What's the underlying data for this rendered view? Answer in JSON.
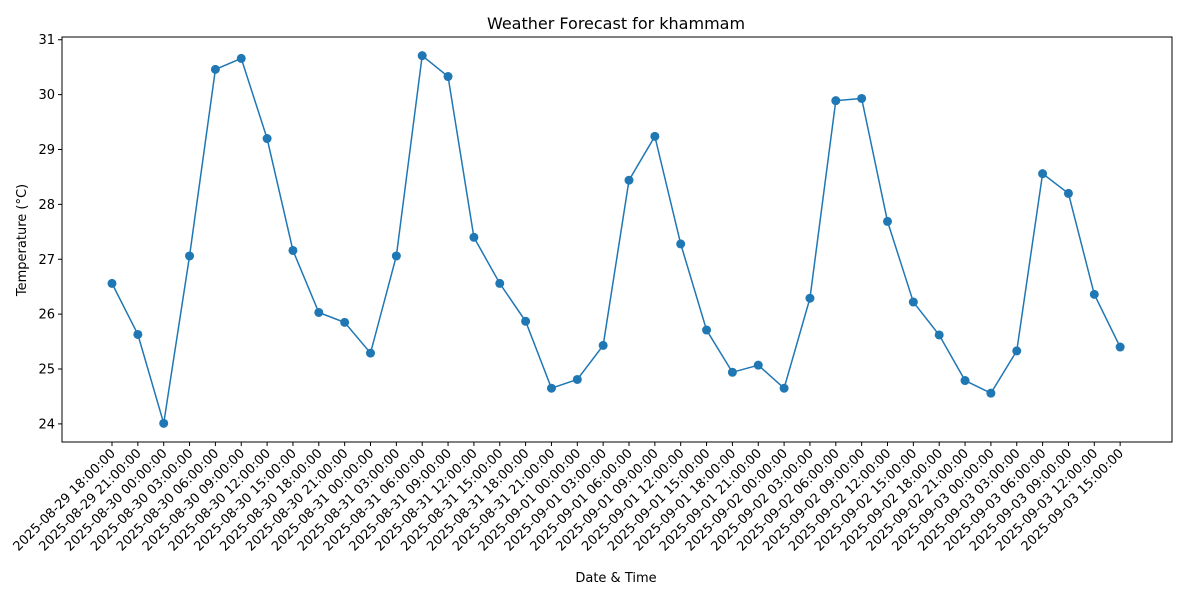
{
  "chart_data": {
    "type": "line",
    "title": "Weather Forecast for khammam",
    "xlabel": "Date & Time",
    "ylabel": "Temperature (°C)",
    "ylim": [
      23.67,
      31.05
    ],
    "y_ticks": [
      24,
      25,
      26,
      27,
      28,
      29,
      30,
      31
    ],
    "grid": false,
    "marker": "circle",
    "colors": {
      "line": "#1f77b4",
      "marker": "#1f77b4",
      "axis": "#000000"
    },
    "x": [
      "2025-08-29 18:00:00",
      "2025-08-29 21:00:00",
      "2025-08-30 00:00:00",
      "2025-08-30 03:00:00",
      "2025-08-30 06:00:00",
      "2025-08-30 09:00:00",
      "2025-08-30 12:00:00",
      "2025-08-30 15:00:00",
      "2025-08-30 18:00:00",
      "2025-08-30 21:00:00",
      "2025-08-31 00:00:00",
      "2025-08-31 03:00:00",
      "2025-08-31 06:00:00",
      "2025-08-31 09:00:00",
      "2025-08-31 12:00:00",
      "2025-08-31 15:00:00",
      "2025-08-31 18:00:00",
      "2025-08-31 21:00:00",
      "2025-09-01 00:00:00",
      "2025-09-01 03:00:00",
      "2025-09-01 06:00:00",
      "2025-09-01 09:00:00",
      "2025-09-01 12:00:00",
      "2025-09-01 15:00:00",
      "2025-09-01 18:00:00",
      "2025-09-01 21:00:00",
      "2025-09-02 00:00:00",
      "2025-09-02 03:00:00",
      "2025-09-02 06:00:00",
      "2025-09-02 09:00:00",
      "2025-09-02 12:00:00",
      "2025-09-02 15:00:00",
      "2025-09-02 18:00:00",
      "2025-09-02 21:00:00",
      "2025-09-03 00:00:00",
      "2025-09-03 03:00:00",
      "2025-09-03 06:00:00",
      "2025-09-03 09:00:00",
      "2025-09-03 12:00:00",
      "2025-09-03 15:00:00"
    ],
    "series": [
      {
        "values": [
          26.56,
          25.63,
          24.01,
          27.06,
          30.46,
          30.66,
          29.2,
          27.16,
          26.03,
          25.85,
          25.29,
          27.06,
          30.71,
          30.33,
          27.4,
          26.56,
          25.87,
          24.65,
          24.81,
          25.43,
          28.44,
          29.24,
          27.28,
          25.71,
          24.94,
          25.07,
          24.65,
          26.29,
          29.89,
          29.93,
          27.69,
          26.22,
          25.62,
          24.79,
          24.56,
          25.33,
          28.56,
          28.2,
          26.36,
          25.4
        ]
      }
    ]
  }
}
